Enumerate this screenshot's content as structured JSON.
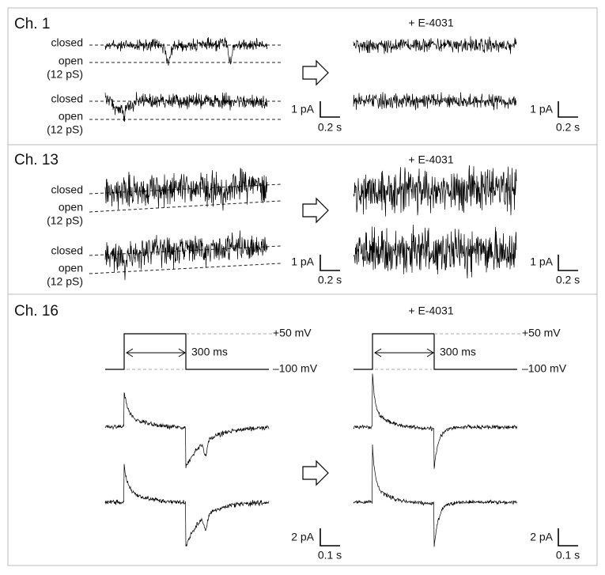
{
  "panels": [
    {
      "channel": "Ch. 1",
      "drug": "+ E-4031",
      "traces": [
        {
          "closed": "closed",
          "open": "open",
          "conductance": "(12 pS)"
        },
        {
          "closed": "closed",
          "open": "open",
          "conductance": "(12 pS)"
        }
      ],
      "scale_before": {
        "current": "1 pA",
        "time": "0.2 s"
      },
      "scale_after": {
        "current": "1 pA",
        "time": "0.2 s"
      }
    },
    {
      "channel": "Ch. 13",
      "drug": "+ E-4031",
      "traces": [
        {
          "closed": "closed",
          "open": "open",
          "conductance": "(12 pS)"
        },
        {
          "closed": "closed",
          "open": "open",
          "conductance": "(12 pS)"
        }
      ],
      "scale_before": {
        "current": "1 pA",
        "time": "0.2 s"
      },
      "scale_after": {
        "current": "1 pA",
        "time": "0.2 s"
      }
    },
    {
      "channel": "Ch. 16",
      "drug": "+ E-4031",
      "protocol_before": {
        "high": "+50 mV",
        "duration": "300 ms",
        "low": "–100 mV"
      },
      "protocol_after": {
        "high": "+50 mV",
        "duration": "300 ms",
        "low": "–100 mV"
      },
      "scale_before": {
        "current": "2 pA",
        "time": "0.1 s"
      },
      "scale_after": {
        "current": "2 pA",
        "time": "0.1 s"
      }
    }
  ]
}
